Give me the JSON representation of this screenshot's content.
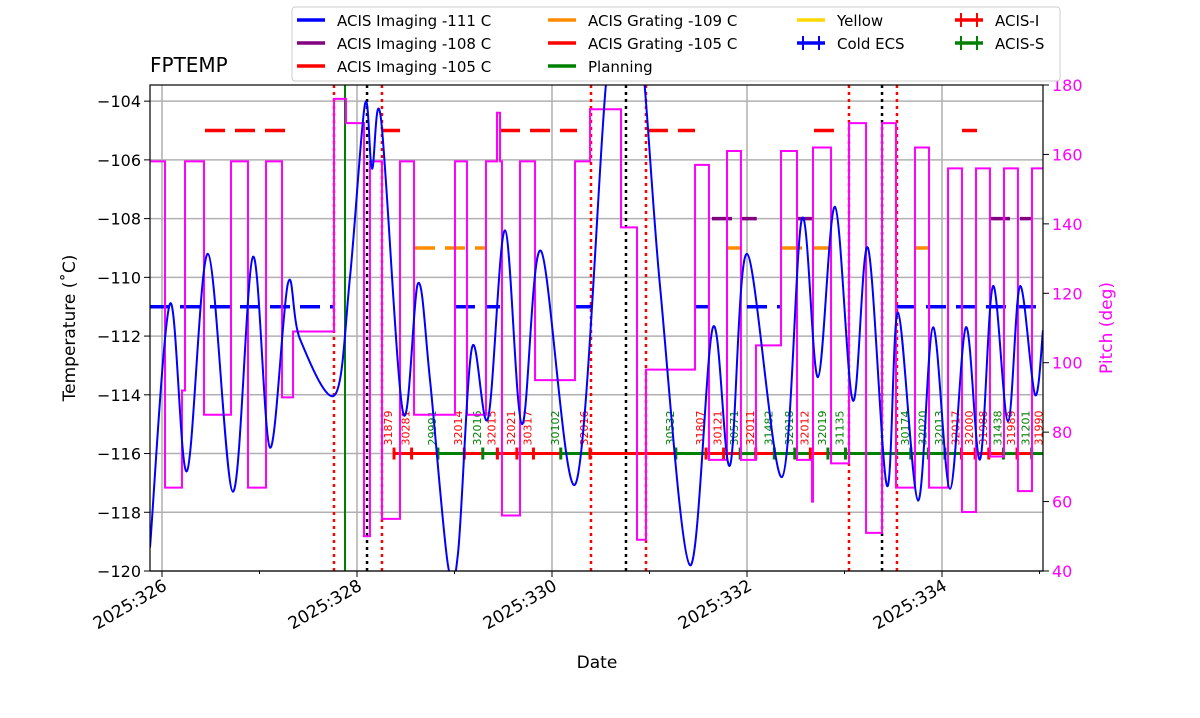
{
  "chart_data": {
    "type": "line",
    "title": "FPTEMP",
    "xlabel": "Date",
    "ylabel": "Temperature ($^\\circ$C)",
    "ylabel_display": "Temperature (˚C)",
    "y2label": "Pitch (deg)",
    "xlim": [
      325.877,
      335.036
    ],
    "ylim": [
      -120,
      -103.45
    ],
    "y2lim": [
      40,
      180
    ],
    "grid": true,
    "xticks": [
      {
        "v": 326,
        "label": "2025:326"
      },
      {
        "v": 328,
        "label": "2025:328"
      },
      {
        "v": 330,
        "label": "2025:330"
      },
      {
        "v": 332,
        "label": "2025:332"
      },
      {
        "v": 334,
        "label": "2025:334"
      }
    ],
    "yticks": [
      -120,
      -118,
      -116,
      -114,
      -112,
      -110,
      -108,
      -106,
      -104
    ],
    "yticklabels": [
      "−120",
      "−118",
      "−116",
      "−114",
      "−112",
      "−110",
      "−108",
      "−106",
      "−104"
    ],
    "y2ticks": [
      40,
      60,
      80,
      100,
      120,
      140,
      160,
      180
    ],
    "y2ticklabels": [
      "40",
      "60",
      "80",
      "100",
      "120",
      "140",
      "160",
      "180"
    ],
    "colors": {
      "temp": "#0000ff",
      "pitch": "#ff00ff",
      "limit111": "#0000ff",
      "limit108": "#800080",
      "limit105": "#ff0000",
      "grating109": "#ff8c00",
      "planning": "#008000",
      "acis_i": "#ff0000",
      "acis_s": "#008000"
    },
    "legend": {
      "placement": "top",
      "entries": [
        {
          "label": "ACIS Imaging -111 C",
          "color": "#0000ff",
          "kind": "line"
        },
        {
          "label": "ACIS Imaging -108 C",
          "color": "#800080",
          "kind": "line"
        },
        {
          "label": "ACIS Imaging -105 C",
          "color": "#ff0000",
          "kind": "line"
        },
        {
          "label": "ACIS Grating -109 C",
          "color": "#ff8c00",
          "kind": "line"
        },
        {
          "label": "ACIS Grating -105 C",
          "color": "#ff0000",
          "kind": "line"
        },
        {
          "label": "Planning",
          "color": "#008000",
          "kind": "line"
        },
        {
          "label": "Yellow",
          "color": "#ffd700",
          "kind": "line"
        },
        {
          "label": "Cold ECS",
          "color": "#0000ff",
          "kind": "tick"
        },
        {
          "label": "ACIS-I",
          "color": "#ff0000",
          "kind": "tick"
        },
        {
          "label": "ACIS-S",
          "color": "#008000",
          "kind": "tick"
        }
      ]
    },
    "temperature": [
      [
        325.877,
        -119.2
      ],
      [
        326.082,
        -110.9
      ],
      [
        326.256,
        -116.6
      ],
      [
        326.472,
        -109.2
      ],
      [
        326.728,
        -117.3
      ],
      [
        326.933,
        -109.3
      ],
      [
        327.108,
        -115.8
      ],
      [
        327.292,
        -110.2
      ],
      [
        327.415,
        -112.1
      ],
      [
        327.774,
        -114.0
      ],
      [
        327.928,
        -110.0
      ],
      [
        328.082,
        -104.1
      ],
      [
        328.154,
        -106.3
      ],
      [
        328.246,
        -104.6
      ],
      [
        328.472,
        -114.6
      ],
      [
        328.626,
        -110.2
      ],
      [
        328.749,
        -113.5
      ],
      [
        328.933,
        -119.8
      ],
      [
        329.036,
        -119.4
      ],
      [
        329.179,
        -112.4
      ],
      [
        329.344,
        -114.8
      ],
      [
        329.518,
        -108.4
      ],
      [
        329.692,
        -115.0
      ],
      [
        329.887,
        -109.1
      ],
      [
        330.246,
        -117.0
      ],
      [
        330.554,
        -103.4
      ],
      [
        330.697,
        -101.0
      ],
      [
        330.903,
        -102.0
      ],
      [
        331.108,
        -110.3
      ],
      [
        331.415,
        -119.8
      ],
      [
        331.651,
        -111.7
      ],
      [
        331.826,
        -116.4
      ],
      [
        332.0,
        -109.2
      ],
      [
        332.359,
        -116.8
      ],
      [
        332.564,
        -108.0
      ],
      [
        332.728,
        -113.4
      ],
      [
        332.903,
        -107.6
      ],
      [
        333.087,
        -114.2
      ],
      [
        333.241,
        -109.0
      ],
      [
        333.436,
        -117.1
      ],
      [
        333.549,
        -111.2
      ],
      [
        333.754,
        -117.6
      ],
      [
        333.908,
        -111.7
      ],
      [
        334.082,
        -117.2
      ],
      [
        334.246,
        -111.7
      ],
      [
        334.39,
        -116.2
      ],
      [
        334.523,
        -110.3
      ],
      [
        334.677,
        -114.9
      ],
      [
        334.8,
        -110.3
      ],
      [
        334.954,
        -114.0
      ],
      [
        335.036,
        -111.8
      ]
    ],
    "pitch_steps": [
      [
        325.877,
        158
      ],
      [
        326.031,
        64
      ],
      [
        326.205,
        92
      ],
      [
        326.236,
        158
      ],
      [
        326.431,
        85
      ],
      [
        326.708,
        158
      ],
      [
        326.882,
        64
      ],
      [
        327.067,
        158
      ],
      [
        327.231,
        90
      ],
      [
        327.344,
        109
      ],
      [
        327.764,
        176
      ],
      [
        327.887,
        169
      ],
      [
        328.072,
        50
      ],
      [
        328.133,
        158
      ],
      [
        328.256,
        55
      ],
      [
        328.441,
        158
      ],
      [
        328.585,
        85
      ],
      [
        329.005,
        158
      ],
      [
        329.128,
        85
      ],
      [
        329.323,
        158
      ],
      [
        329.436,
        172
      ],
      [
        329.467,
        158
      ],
      [
        329.487,
        56
      ],
      [
        329.672,
        158
      ],
      [
        329.826,
        95
      ],
      [
        330.236,
        158
      ],
      [
        330.39,
        173
      ],
      [
        330.708,
        139
      ],
      [
        330.872,
        49
      ],
      [
        330.964,
        98
      ],
      [
        331.467,
        157
      ],
      [
        331.61,
        72
      ],
      [
        331.795,
        161
      ],
      [
        331.938,
        72
      ],
      [
        332.092,
        105
      ],
      [
        332.349,
        161
      ],
      [
        332.513,
        72
      ],
      [
        332.667,
        60
      ],
      [
        332.677,
        162
      ],
      [
        332.862,
        71
      ],
      [
        333.046,
        169
      ],
      [
        333.221,
        51
      ],
      [
        333.385,
        169
      ],
      [
        333.528,
        64
      ],
      [
        333.723,
        162
      ],
      [
        333.867,
        64
      ],
      [
        334.062,
        156
      ],
      [
        334.205,
        57
      ],
      [
        334.349,
        156
      ],
      [
        334.492,
        73
      ],
      [
        334.636,
        156
      ],
      [
        334.779,
        63
      ],
      [
        334.923,
        156
      ],
      [
        335.036,
        156
      ]
    ],
    "limit_segments": [
      {
        "temp": -111,
        "color": "#0000ff",
        "ranges": [
          [
            325.877,
            327.764
          ],
          [
            329.005,
            329.467
          ],
          [
            330.236,
            330.41
          ],
          [
            331.467,
            331.6
          ],
          [
            332.0,
            332.339
          ],
          [
            333.528,
            335.036
          ]
        ]
      },
      {
        "temp": -108,
        "color": "#800080",
        "ranges": [
          [
            331.641,
            332.1
          ],
          [
            332.513,
            332.667
          ],
          [
            334.492,
            334.923
          ]
        ]
      },
      {
        "temp": -105,
        "color": "#ff0000",
        "ranges": [
          [
            326.441,
            327.364
          ],
          [
            328.256,
            328.441
          ],
          [
            329.467,
            330.257
          ],
          [
            330.984,
            331.467
          ],
          [
            332.687,
            332.892
          ],
          [
            334.205,
            334.359
          ]
        ]
      },
      {
        "temp": -109,
        "color": "#ff8c00",
        "ranges": [
          [
            328.595,
            329.323
          ],
          [
            331.795,
            331.948
          ],
          [
            332.359,
            332.862
          ],
          [
            333.723,
            333.877
          ]
        ]
      }
    ],
    "vlines": [
      {
        "day": 327.764,
        "color": "#ff0000",
        "style": "dotted"
      },
      {
        "day": 328.256,
        "color": "#ff0000",
        "style": "dotted"
      },
      {
        "day": 330.4,
        "color": "#ff0000",
        "style": "dotted"
      },
      {
        "day": 330.964,
        "color": "#ff0000",
        "style": "dotted"
      },
      {
        "day": 333.046,
        "color": "#ff0000",
        "style": "dotted"
      },
      {
        "day": 333.538,
        "color": "#ff0000",
        "style": "dotted"
      },
      {
        "day": 328.103,
        "color": "#000000",
        "style": "dotted"
      },
      {
        "day": 330.759,
        "color": "#000000",
        "style": "dotted"
      },
      {
        "day": 333.385,
        "color": "#000000",
        "style": "dotted"
      },
      {
        "day": 327.877,
        "color": "#008000",
        "style": "solid"
      }
    ],
    "obsid_row_temp": -116,
    "obsids": [
      {
        "id": "31879",
        "day": 328.38,
        "instrument": "ACIS-I"
      },
      {
        "id": "30281",
        "day": 328.56,
        "instrument": "ACIS-I"
      },
      {
        "id": "29991",
        "day": 328.83,
        "instrument": "ACIS-S"
      },
      {
        "id": "32014",
        "day": 329.1,
        "instrument": "ACIS-I"
      },
      {
        "id": "32016",
        "day": 329.29,
        "instrument": "ACIS-S"
      },
      {
        "id": "32015",
        "day": 329.44,
        "instrument": "ACIS-I"
      },
      {
        "id": "32021",
        "day": 329.64,
        "instrument": "ACIS-I"
      },
      {
        "id": "30317",
        "day": 329.81,
        "instrument": "ACIS-I"
      },
      {
        "id": "30102",
        "day": 330.09,
        "instrument": "ACIS-S"
      },
      {
        "id": "32016",
        "day": 330.39,
        "instrument": "ACIS-I"
      },
      {
        "id": "30532",
        "day": 331.27,
        "instrument": "ACIS-S"
      },
      {
        "id": "31807",
        "day": 331.58,
        "instrument": "ACIS-I"
      },
      {
        "id": "30121",
        "day": 331.76,
        "instrument": "ACIS-I"
      },
      {
        "id": "30571",
        "day": 331.93,
        "instrument": "ACIS-S"
      },
      {
        "id": "32011",
        "day": 332.09,
        "instrument": "ACIS-I"
      },
      {
        "id": "31482",
        "day": 332.28,
        "instrument": "ACIS-S"
      },
      {
        "id": "32018",
        "day": 332.49,
        "instrument": "ACIS-S"
      },
      {
        "id": "32012",
        "day": 332.65,
        "instrument": "ACIS-I"
      },
      {
        "id": "32019",
        "day": 332.83,
        "instrument": "ACIS-S"
      },
      {
        "id": "31135",
        "day": 333.01,
        "instrument": "ACIS-S"
      },
      {
        "id": "30174",
        "day": 333.68,
        "instrument": "ACIS-S"
      },
      {
        "id": "32020",
        "day": 333.86,
        "instrument": "ACIS-S"
      },
      {
        "id": "32013",
        "day": 334.03,
        "instrument": "ACIS-S"
      },
      {
        "id": "32017",
        "day": 334.2,
        "instrument": "ACIS-I"
      },
      {
        "id": "32000",
        "day": 334.34,
        "instrument": "ACIS-I"
      },
      {
        "id": "31988",
        "day": 334.48,
        "instrument": "ACIS-I"
      },
      {
        "id": "31438",
        "day": 334.63,
        "instrument": "ACIS-S"
      },
      {
        "id": "31989",
        "day": 334.77,
        "instrument": "ACIS-I"
      },
      {
        "id": "31201",
        "day": 334.92,
        "instrument": "ACIS-S"
      },
      {
        "id": "31990",
        "day": 335.05,
        "instrument": "ACIS-I"
      }
    ]
  }
}
